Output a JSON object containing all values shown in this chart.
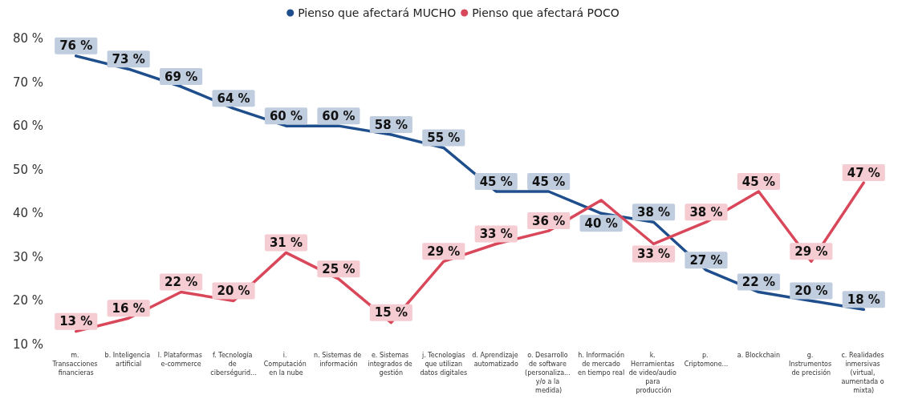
{
  "chart_data": {
    "type": "line",
    "categories": [
      "m. Transacciones financieras",
      "b. Inteligencia artificial",
      "l. Plataformas e-commerce",
      "f. Tecnología de ciberségurid...",
      "i. Computación en la nube",
      "n. Sistemas de información",
      "e. Sistemas integrados de gestión",
      "j. Tecnologías que utilizan datos digitales",
      "d. Aprendizaje automatizado",
      "o. Desarrollo de software (personaliza... y/o a la medida)",
      "h. Información de mercado en tiempo real",
      "k. Herramientas de video/audio para producción",
      "p. Criptomone...",
      "a. Blockchain",
      "g. Instrumentos de precisión",
      "c. Realidades inmersivas (virtual, aumentada o mixta)"
    ],
    "series": [
      {
        "name": "Pienso que afectará MUCHO",
        "color": "#1f4e8c",
        "values": [
          76,
          73,
          69,
          64,
          60,
          60,
          58,
          55,
          45,
          45,
          40,
          38,
          27,
          22,
          20,
          18
        ],
        "value_labels": [
          "76 %",
          "73 %",
          "69 %",
          "64 %",
          "60 %",
          "60 %",
          "58 %",
          "55 %",
          "45 %",
          "45 %",
          "40 %",
          "38 %",
          "27 %",
          "22 %",
          "20 %",
          "18 %"
        ]
      },
      {
        "name": "Pienso que afectará POCO",
        "color": "#d9485a",
        "values": [
          13,
          16,
          22,
          20,
          31,
          25,
          15,
          29,
          33,
          36,
          43,
          33,
          38,
          45,
          29,
          47
        ],
        "value_labels": [
          "13 %",
          "16 %",
          "22 %",
          "20 %",
          "31 %",
          "25 %",
          "15 %",
          "29 %",
          "33 %",
          "36 %",
          null,
          "33 %",
          "38 %",
          "45 %",
          "29 %",
          "47 %"
        ]
      }
    ],
    "ylim": [
      10,
      80
    ],
    "yticks": [
      {
        "value": 10,
        "label": "10 %"
      },
      {
        "value": 20,
        "label": "20 %"
      },
      {
        "value": 30,
        "label": "30 %"
      },
      {
        "value": 40,
        "label": "40 %"
      },
      {
        "value": 50,
        "label": "50 %"
      },
      {
        "value": 60,
        "label": "60 %"
      },
      {
        "value": 70,
        "label": "70 %"
      },
      {
        "value": 80,
        "label": "80 %"
      }
    ],
    "grid": false,
    "legend": "top",
    "marker": "none",
    "line_style": "solid"
  }
}
